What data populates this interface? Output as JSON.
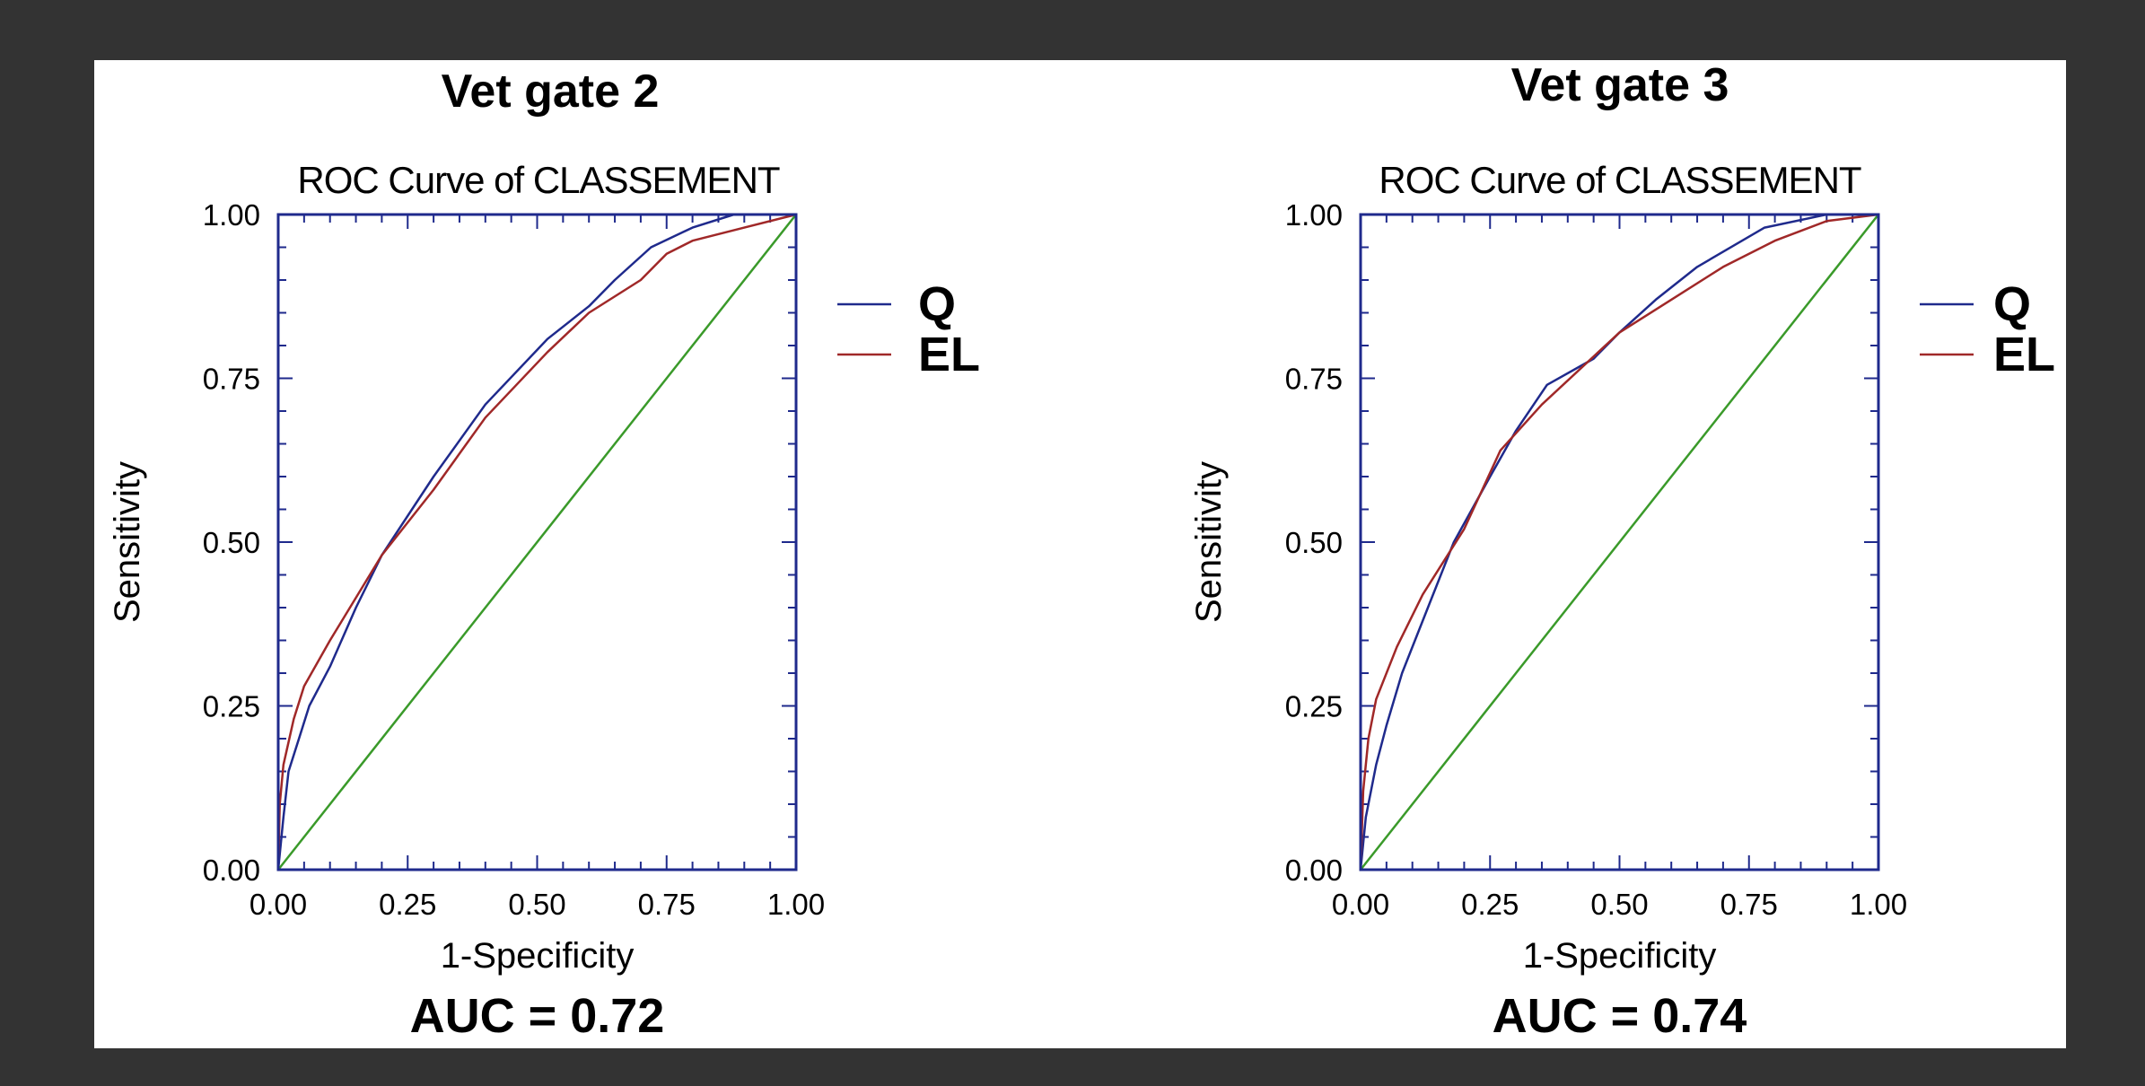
{
  "colors": {
    "background": "#333333",
    "panel": "#ffffff",
    "axis": "#1f2a8c",
    "Q": "#1f2a8c",
    "EL": "#a02828",
    "diagonal": "#3a9a2a"
  },
  "chart_data": [
    {
      "type": "line",
      "heading": "Vet gate 2",
      "title": "ROC Curve of CLASSEMENT",
      "xlabel": "1-Specificity",
      "ylabel": "Sensitivity",
      "xlim": [
        0,
        1
      ],
      "ylim": [
        0,
        1
      ],
      "x_ticks": [
        "0.00",
        "0.25",
        "0.50",
        "0.75",
        "1.00"
      ],
      "y_ticks": [
        "0.00",
        "0.25",
        "0.50",
        "0.75",
        "1.00"
      ],
      "grid": false,
      "legend_position": "right",
      "series": [
        {
          "name": "Q",
          "color_key": "Q",
          "points": [
            [
              0,
              0
            ],
            [
              0.01,
              0.08
            ],
            [
              0.02,
              0.15
            ],
            [
              0.04,
              0.2
            ],
            [
              0.06,
              0.25
            ],
            [
              0.1,
              0.31
            ],
            [
              0.15,
              0.4
            ],
            [
              0.2,
              0.48
            ],
            [
              0.3,
              0.6
            ],
            [
              0.4,
              0.71
            ],
            [
              0.52,
              0.81
            ],
            [
              0.6,
              0.86
            ],
            [
              0.65,
              0.9
            ],
            [
              0.72,
              0.95
            ],
            [
              0.8,
              0.98
            ],
            [
              0.88,
              1.0
            ],
            [
              1.0,
              1.0
            ]
          ]
        },
        {
          "name": "EL",
          "color_key": "EL",
          "points": [
            [
              0,
              0
            ],
            [
              0.003,
              0.1
            ],
            [
              0.01,
              0.16
            ],
            [
              0.03,
              0.23
            ],
            [
              0.05,
              0.28
            ],
            [
              0.1,
              0.35
            ],
            [
              0.2,
              0.48
            ],
            [
              0.3,
              0.58
            ],
            [
              0.4,
              0.69
            ],
            [
              0.52,
              0.79
            ],
            [
              0.6,
              0.85
            ],
            [
              0.7,
              0.9
            ],
            [
              0.75,
              0.94
            ],
            [
              0.8,
              0.96
            ],
            [
              0.9,
              0.98
            ],
            [
              1.0,
              1.0
            ]
          ]
        },
        {
          "name": "",
          "color_key": "diagonal",
          "points": [
            [
              0,
              0
            ],
            [
              1,
              1
            ]
          ]
        }
      ],
      "annotation": "AUC = 0.72"
    },
    {
      "type": "line",
      "heading": "Vet gate 3",
      "title": "ROC Curve of CLASSEMENT",
      "xlabel": "1-Specificity",
      "ylabel": "Sensitivity",
      "xlim": [
        0,
        1
      ],
      "ylim": [
        0,
        1
      ],
      "x_ticks": [
        "0.00",
        "0.25",
        "0.50",
        "0.75",
        "1.00"
      ],
      "y_ticks": [
        "0.00",
        "0.25",
        "0.50",
        "0.75",
        "1.00"
      ],
      "grid": false,
      "legend_position": "right",
      "series": [
        {
          "name": "Q",
          "color_key": "Q",
          "points": [
            [
              0,
              0
            ],
            [
              0.01,
              0.08
            ],
            [
              0.03,
              0.16
            ],
            [
              0.05,
              0.22
            ],
            [
              0.08,
              0.3
            ],
            [
              0.13,
              0.4
            ],
            [
              0.18,
              0.5
            ],
            [
              0.25,
              0.6
            ],
            [
              0.3,
              0.67
            ],
            [
              0.36,
              0.74
            ],
            [
              0.45,
              0.78
            ],
            [
              0.5,
              0.82
            ],
            [
              0.57,
              0.87
            ],
            [
              0.65,
              0.92
            ],
            [
              0.78,
              0.98
            ],
            [
              0.9,
              1.0
            ],
            [
              1.0,
              1.0
            ]
          ]
        },
        {
          "name": "EL",
          "color_key": "EL",
          "points": [
            [
              0,
              0
            ],
            [
              0.005,
              0.12
            ],
            [
              0.015,
              0.2
            ],
            [
              0.03,
              0.26
            ],
            [
              0.07,
              0.34
            ],
            [
              0.12,
              0.42
            ],
            [
              0.2,
              0.52
            ],
            [
              0.27,
              0.64
            ],
            [
              0.35,
              0.71
            ],
            [
              0.5,
              0.82
            ],
            [
              0.6,
              0.87
            ],
            [
              0.7,
              0.92
            ],
            [
              0.8,
              0.96
            ],
            [
              0.9,
              0.99
            ],
            [
              1.0,
              1.0
            ]
          ]
        },
        {
          "name": "",
          "color_key": "diagonal",
          "points": [
            [
              0,
              0
            ],
            [
              1,
              1
            ]
          ]
        }
      ],
      "annotation": "AUC = 0.74"
    }
  ]
}
